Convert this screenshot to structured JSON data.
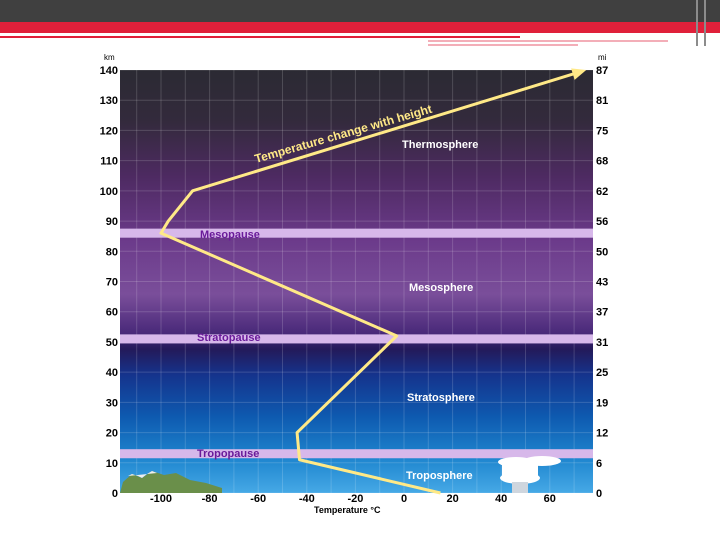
{
  "axes": {
    "left_unit": "km",
    "right_unit": "mi",
    "x_title": "Temperature °C",
    "left_ticks": [
      "140",
      "130",
      "120",
      "110",
      "100",
      "90",
      "80",
      "70",
      "60",
      "50",
      "40",
      "30",
      "20",
      "10",
      "0"
    ],
    "right_ticks": [
      "87",
      "81",
      "75",
      "68",
      "62",
      "56",
      "50",
      "43",
      "37",
      "31",
      "25",
      "19",
      "12",
      "6",
      "0"
    ],
    "x_ticks": [
      "-100",
      "-80",
      "-60",
      "-40",
      "-20",
      "0",
      "20",
      "40",
      "60"
    ]
  },
  "layers": {
    "thermosphere": "Thermosphere",
    "mesosphere": "Mesosphere",
    "stratosphere": "Stratosphere",
    "troposphere": "Troposphere"
  },
  "pauses": {
    "mesopause": "Mesopause",
    "stratopause": "Stratopause",
    "tropopause": "Tropopause"
  },
  "curve_label": "Temperature change with height",
  "temperature_profile": {
    "x_unit": "°C",
    "y_unit": "km",
    "points": [
      {
        "temp": 15,
        "alt": 0
      },
      {
        "temp": -43,
        "alt": 11
      },
      {
        "temp": -44,
        "alt": 20
      },
      {
        "temp": -3,
        "alt": 52
      },
      {
        "temp": -100,
        "alt": 86
      },
      {
        "temp": -97,
        "alt": 90
      },
      {
        "temp": -87,
        "alt": 100
      },
      {
        "temp": 75,
        "alt": 140
      }
    ]
  },
  "colors": {
    "curve": "#ffe987",
    "pause_band": "#d7b8ea",
    "pause_text": "#6a1b9a",
    "header_band": "#404040",
    "accent_red": "#e0203a"
  }
}
